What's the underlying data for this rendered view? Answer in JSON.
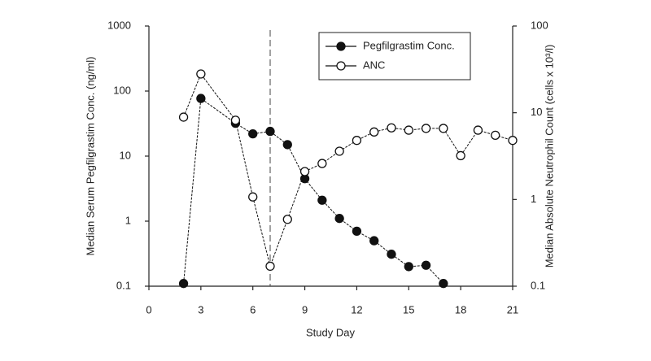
{
  "chart_data": {
    "type": "line",
    "xlabel": "Study Day",
    "ylabel": "Median Serum Pegfilgrastim Conc. (ng/ml)",
    "y2label": "Median Absolute Neutrophil Count (cells x 10³/l)",
    "xlim": [
      0,
      21
    ],
    "xticks": [
      0,
      3,
      6,
      9,
      12,
      15,
      18,
      21
    ],
    "ylim": [
      0.1,
      1000
    ],
    "yticks": [
      0.1,
      1,
      10,
      100,
      1000
    ],
    "log_y": true,
    "y2lim": [
      0.1,
      100
    ],
    "y2ticks": [
      0.1,
      1,
      10,
      100
    ],
    "log_y2": true,
    "vline": 7,
    "legend": "top-center",
    "series": [
      {
        "name": "Pegfilgrastim Conc.",
        "color": "#111111",
        "marker": "filled",
        "x": [
          2,
          3,
          5,
          6,
          7,
          8,
          9,
          10,
          11,
          12,
          13,
          14,
          15,
          16,
          17
        ],
        "values": [
          0.11,
          77,
          32,
          22,
          24,
          15,
          4.5,
          2.1,
          1.1,
          0.7,
          0.5,
          0.31,
          0.2,
          0.21,
          0.11
        ]
      },
      {
        "name": "ANC",
        "color": "#111111",
        "marker": "open",
        "axis": "y2",
        "x": [
          2,
          3,
          5,
          6,
          7,
          8,
          9,
          10,
          11,
          12,
          13,
          14,
          15,
          16,
          17,
          18,
          19,
          20,
          21
        ],
        "values": [
          8.9,
          28,
          8.2,
          1.07,
          0.17,
          0.59,
          2.1,
          2.6,
          3.6,
          4.8,
          6.0,
          6.7,
          6.3,
          6.6,
          6.6,
          3.2,
          6.3,
          5.5,
          4.8
        ]
      }
    ]
  }
}
